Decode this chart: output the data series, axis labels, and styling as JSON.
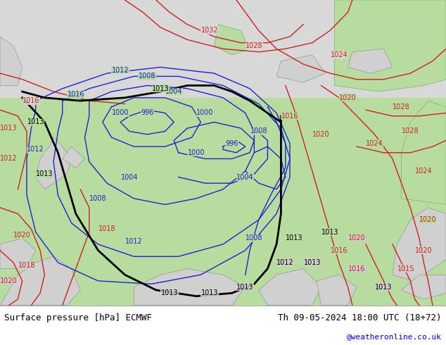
{
  "title_left": "Surface pressure [hPa] ECMWF",
  "title_right": "Th 09-05-2024 18:00 UTC (18+72)",
  "credit": "@weatheronline.co.uk",
  "map_bg_green": "#b8dca0",
  "map_bg_gray": "#d0d0d0",
  "map_bg_top": "#d8d8d8",
  "footer_bg": "#ffffff",
  "text_color": "#000000",
  "blue": "#2222cc",
  "red": "#cc2222",
  "black": "#000000",
  "credit_color": "#0000cc",
  "font_size_title": 9,
  "dpi": 100,
  "figsize": [
    6.34,
    4.9
  ]
}
